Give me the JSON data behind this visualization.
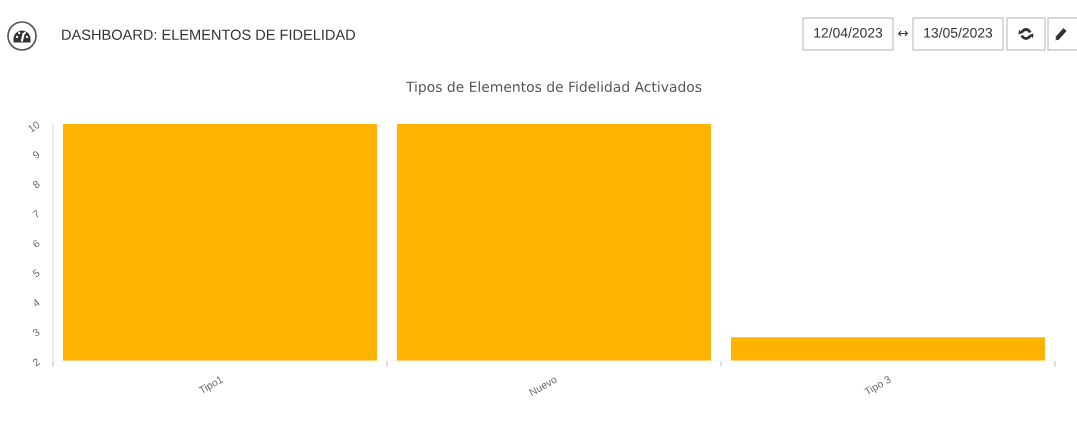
{
  "chart_data": {
    "type": "bar",
    "title": "Tipos de Elementos de Fidelidad Activados",
    "annotations": [
      "DASHBOARD: ELEMENTOS DE FIDELIDAD",
      "12/04/2023",
      "↔",
      "13/05/2023"
    ],
    "categories": [
      "Tipo1",
      "Nuevo",
      "Tipo 3"
    ],
    "values": [
      10,
      10,
      2.8
    ],
    "color": "#ffb300",
    "ylim": [
      2,
      10
    ],
    "yticks": [
      2,
      3,
      4,
      5,
      6,
      7,
      8,
      9,
      10
    ],
    "grid": false,
    "legend": false
  }
}
